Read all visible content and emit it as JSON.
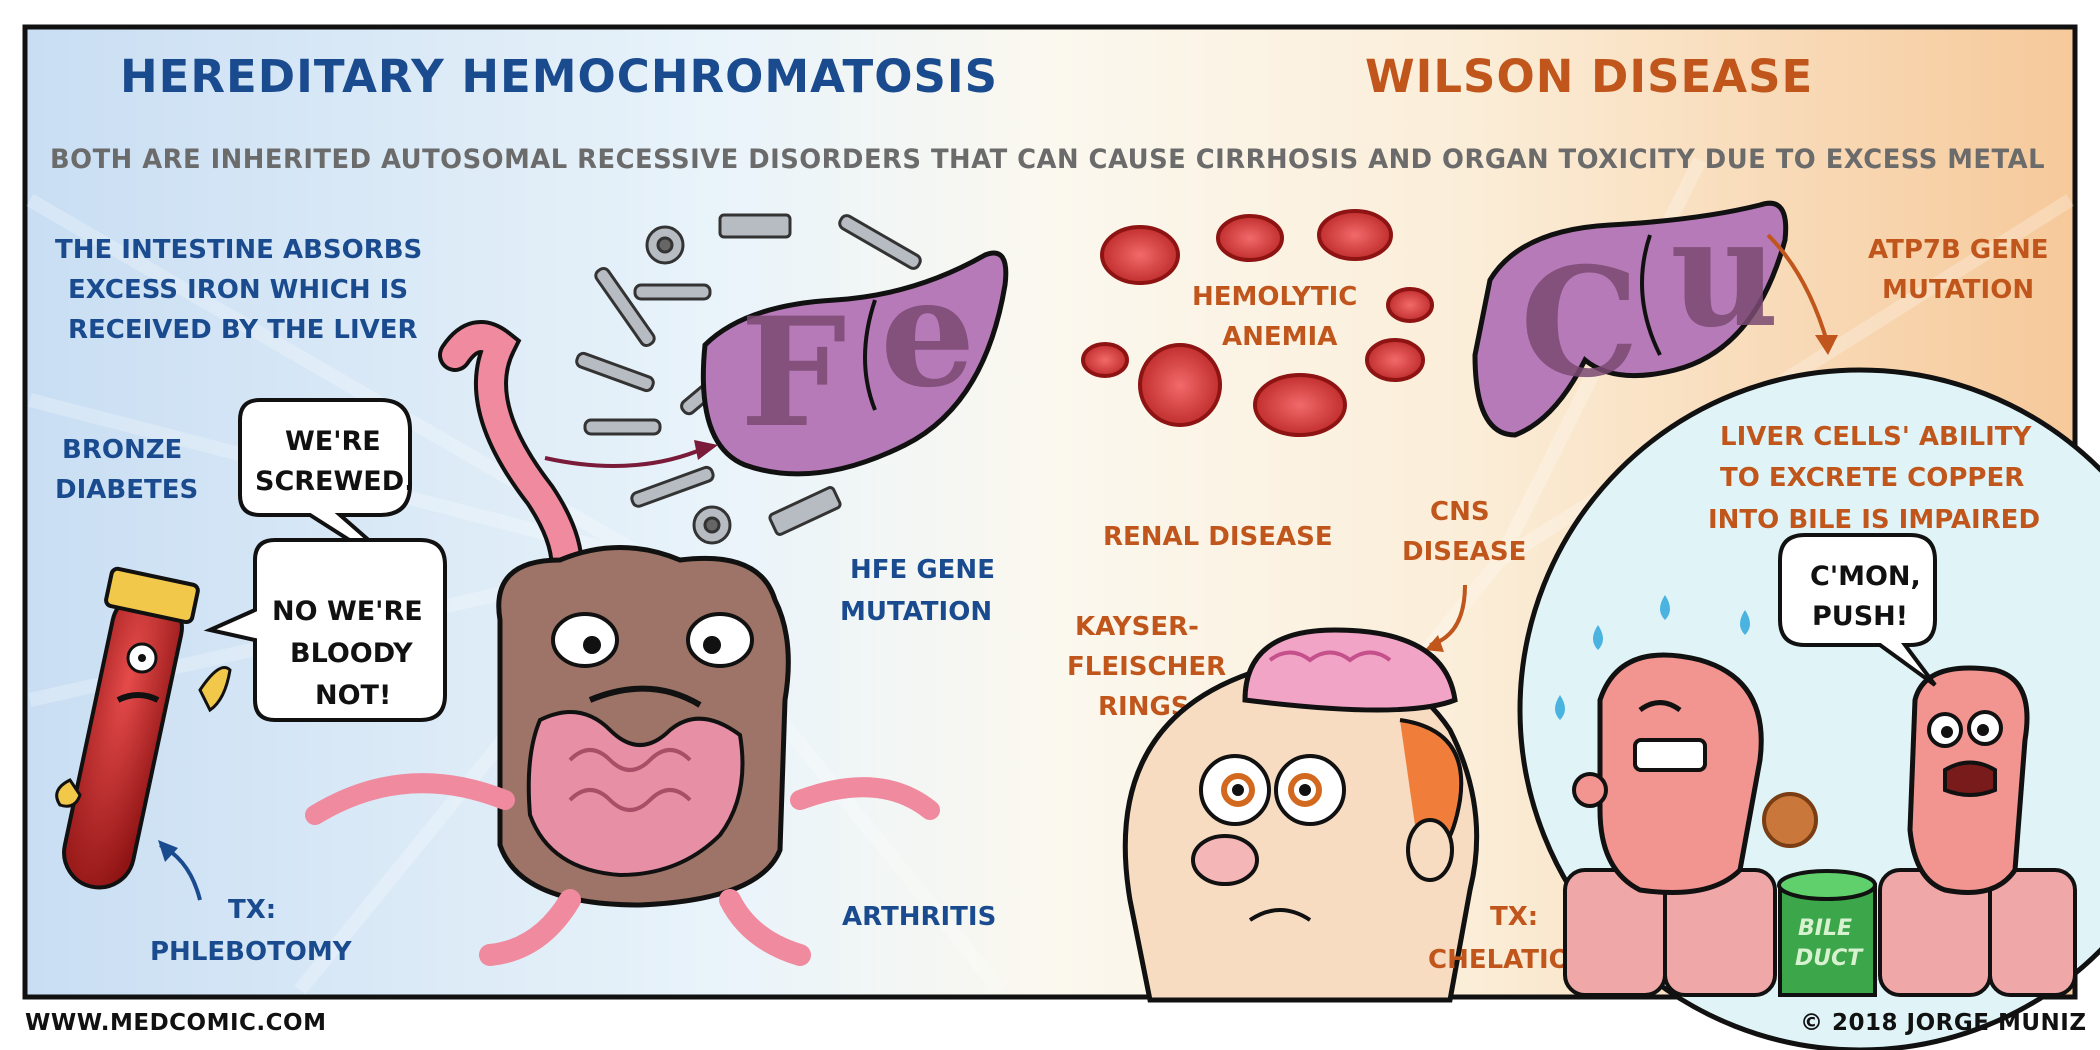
{
  "left": {
    "title": "HEREDITARY HEMOCHROMATOSIS",
    "intro": [
      "THE INTESTINE ABSORBS",
      "EXCESS IRON WHICH IS",
      "RECEIVED BY THE LIVER"
    ],
    "bronze": [
      "BRONZE",
      "DIABETES"
    ],
    "bubble1": [
      "WE'RE",
      "SCREWED."
    ],
    "bubble2": [
      "NO WE'RE",
      "BLOODY",
      "NOT!"
    ],
    "hfe": [
      "HFE GENE",
      "MUTATION"
    ],
    "arthritis": "ARTHRITIS",
    "tx": [
      "TX:",
      "PHLEBOTOMY"
    ],
    "liver_letters": [
      "F",
      "e"
    ]
  },
  "right": {
    "title": "WILSON DISEASE",
    "hemolytic": [
      "HEMOLYTIC",
      "ANEMIA"
    ],
    "atp7b": [
      "ATP7B GENE",
      "MUTATION"
    ],
    "renal": "RENAL DISEASE",
    "cns": [
      "CNS",
      "DISEASE"
    ],
    "kayser": [
      "KAYSER-",
      "FLEISCHER",
      "RINGS"
    ],
    "liver_cells": [
      "LIVER CELLS' ABILITY",
      "TO EXCRETE COPPER",
      "INTO BILE IS IMPAIRED"
    ],
    "bubble": [
      "C'MON,",
      "PUSH!"
    ],
    "bile_duct": [
      "BILE",
      "DUCT"
    ],
    "tx": [
      "TX:",
      "CHELATION"
    ],
    "liver_letters": [
      "C",
      "u"
    ]
  },
  "shared_caption": "BOTH ARE INHERITED AUTOSOMAL RECESSIVE DISORDERS THAT CAN CAUSE CIRRHOSIS AND ORGAN TOXICITY DUE TO EXCESS METAL",
  "footer": {
    "website": "WWW.MEDCOMIC.COM",
    "copyright": "© 2018 JORGE MUNIZ"
  },
  "colors": {
    "left_text": "#1b4b8f",
    "right_text": "#c0561b",
    "liver": "#b77ab8",
    "blood": "#c62828",
    "skin": "#f0a7a7"
  }
}
